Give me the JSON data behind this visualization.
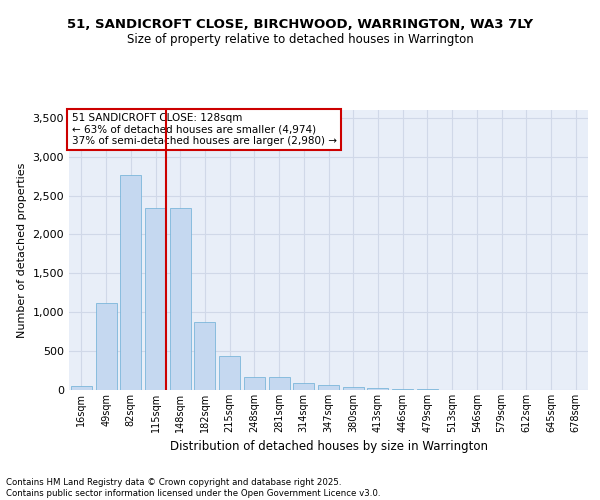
{
  "title1": "51, SANDICROFT CLOSE, BIRCHWOOD, WARRINGTON, WA3 7LY",
  "title2": "Size of property relative to detached houses in Warrington",
  "xlabel": "Distribution of detached houses by size in Warrington",
  "ylabel": "Number of detached properties",
  "categories": [
    "16sqm",
    "49sqm",
    "82sqm",
    "115sqm",
    "148sqm",
    "182sqm",
    "215sqm",
    "248sqm",
    "281sqm",
    "314sqm",
    "347sqm",
    "380sqm",
    "413sqm",
    "446sqm",
    "479sqm",
    "513sqm",
    "546sqm",
    "579sqm",
    "612sqm",
    "645sqm",
    "678sqm"
  ],
  "values": [
    50,
    1120,
    2760,
    2340,
    2340,
    880,
    440,
    170,
    165,
    90,
    60,
    45,
    30,
    15,
    10,
    5,
    5,
    5,
    5,
    5,
    5
  ],
  "bar_color": "#c5d8f0",
  "bar_edge_color": "#6aaed6",
  "red_line_index": 3,
  "annotation_title": "51 SANDICROFT CLOSE: 128sqm",
  "annotation_line1": "← 63% of detached houses are smaller (4,974)",
  "annotation_line2": "37% of semi-detached houses are larger (2,980) →",
  "annotation_box_color": "#ffffff",
  "annotation_box_edge": "#cc0000",
  "red_line_color": "#cc0000",
  "grid_color": "#d0d8e8",
  "background_color": "#e8eef8",
  "ylim": [
    0,
    3600
  ],
  "yticks": [
    0,
    500,
    1000,
    1500,
    2000,
    2500,
    3000,
    3500
  ],
  "footer1": "Contains HM Land Registry data © Crown copyright and database right 2025.",
  "footer2": "Contains public sector information licensed under the Open Government Licence v3.0."
}
